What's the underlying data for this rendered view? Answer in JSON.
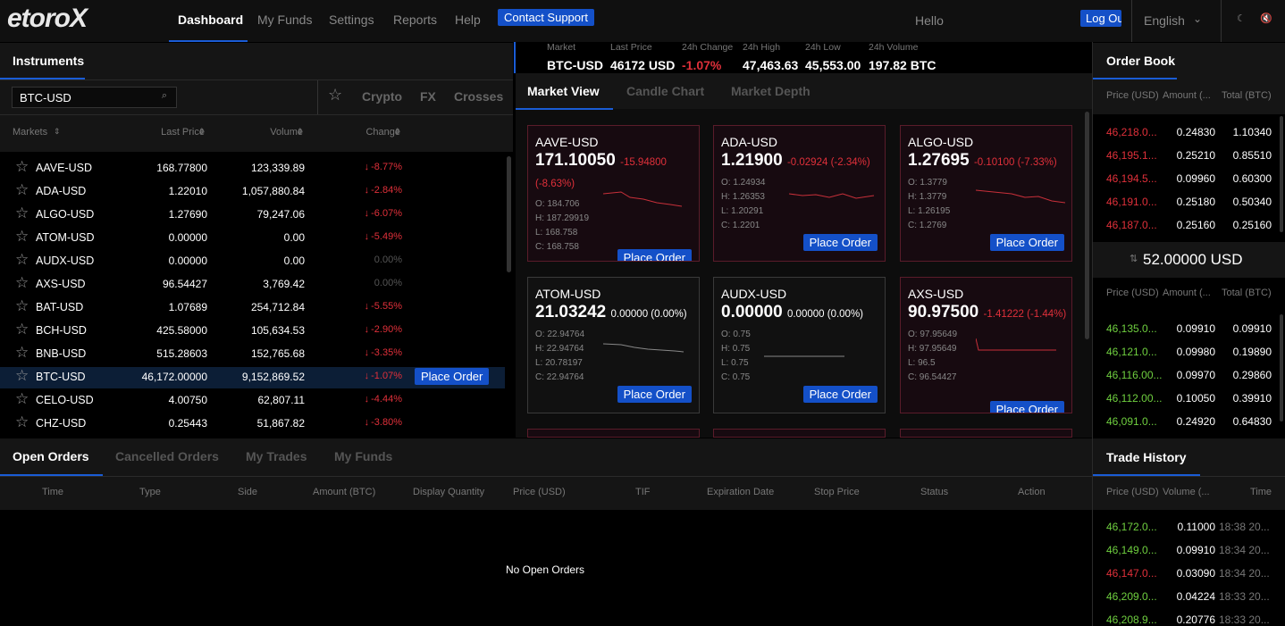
{
  "nav": {
    "logo": "etoroX",
    "items": [
      "Dashboard",
      "My Funds",
      "Settings",
      "Reports",
      "Help"
    ],
    "contact": "Contact Support",
    "greeting": "Hello",
    "logout": "Log Ou",
    "language": "English"
  },
  "instruments": {
    "title": "Instruments",
    "search": "BTC-USD",
    "tabs": [
      "Crypto",
      "FX",
      "Crosses"
    ],
    "columns": [
      "Markets",
      "Last Price",
      "Volume",
      "Change"
    ],
    "rows": [
      [
        "AAVE-USD",
        "168.77800",
        "123,339.89",
        "-8.77%"
      ],
      [
        "ADA-USD",
        "1.22010",
        "1,057,880.84",
        "-2.84%"
      ],
      [
        "ALGO-USD",
        "1.27690",
        "79,247.06",
        "-6.07%"
      ],
      [
        "ATOM-USD",
        "0.00000",
        "0.00",
        "-5.49%"
      ],
      [
        "AUDX-USD",
        "0.00000",
        "0.00",
        "0.00%"
      ],
      [
        "AXS-USD",
        "96.54427",
        "3,769.42",
        "0.00%"
      ],
      [
        "BAT-USD",
        "1.07689",
        "254,712.84",
        "-5.55%"
      ],
      [
        "BCH-USD",
        "425.58000",
        "105,634.53",
        "-2.90%"
      ],
      [
        "BNB-USD",
        "515.28603",
        "152,765.68",
        "-3.35%"
      ],
      [
        "BTC-USD",
        "46,172.00000",
        "9,152,869.52",
        "-1.07%"
      ],
      [
        "CELO-USD",
        "4.00750",
        "62,807.11",
        "-4.44%"
      ],
      [
        "CHZ-USD",
        "0.25443",
        "51,867.82",
        "-3.80%"
      ]
    ],
    "selected_row": 9,
    "place_order": "Place Order"
  },
  "ticker": {
    "labels": [
      "Market",
      "Last Price",
      "24h Change",
      "24h High",
      "24h Low",
      "24h Volume"
    ],
    "values": [
      "BTC-USD",
      "46172 USD",
      "-1.07%",
      "47,463.63",
      "45,553.00",
      "197.82 BTC"
    ]
  },
  "market": {
    "tabs": [
      "Market View",
      "Candle Chart",
      "Market Depth"
    ],
    "button": "Place Order",
    "cards": [
      {
        "name": "AAVE-USD",
        "price": "171.10050",
        "change": "-15.94800 (-8.63%)",
        "open": "O: 184.706",
        "high": "H: 187.29919",
        "low": "L: 168.758",
        "close": "C: 168.758"
      },
      {
        "name": "ADA-USD",
        "price": "1.21900",
        "change": "-0.02924 (-2.34%)",
        "open": "O: 1.24934",
        "high": "H: 1.26353",
        "low": "L: 1.20291",
        "close": "C: 1.2201"
      },
      {
        "name": "ALGO-USD",
        "price": "1.27695",
        "change": "-0.10100 (-7.33%)",
        "open": "O: 1.3779",
        "high": "H: 1.3779",
        "low": "L: 1.26195",
        "close": "C: 1.2769"
      },
      {
        "name": "ATOM-USD",
        "price": "21.03242",
        "change": "0.00000 (0.00%)",
        "open": "O: 22.94764",
        "high": "H: 22.94764",
        "low": "L: 20.78197",
        "close": "C: 22.94764"
      },
      {
        "name": "AUDX-USD",
        "price": "0.00000",
        "change": "0.00000 (0.00%)",
        "open": "O: 0.75",
        "high": "H: 0.75",
        "low": "L: 0.75",
        "close": "C: 0.75"
      },
      {
        "name": "AXS-USD",
        "price": "90.97500",
        "change": "-1.41222 (-1.44%)",
        "open": "O: 97.95649",
        "high": "H: 97.95649",
        "low": "L: 96.5",
        "close": "C: 96.54427"
      }
    ]
  },
  "order_book": {
    "title": "Order Book",
    "columns": [
      "Price (USD)",
      "Amount (...",
      "Total (BTC)"
    ],
    "asks": [
      [
        "46,218.0...",
        "0.24830",
        "1.10340"
      ],
      [
        "46,195.1...",
        "0.25210",
        "0.85510"
      ],
      [
        "46,194.5...",
        "0.09960",
        "0.60300"
      ],
      [
        "46,191.0...",
        "0.25180",
        "0.50340"
      ],
      [
        "46,187.0...",
        "0.25160",
        "0.25160"
      ]
    ],
    "mid": "52.00000 USD",
    "bids": [
      [
        "46,135.0...",
        "0.09910",
        "0.09910"
      ],
      [
        "46,121.0...",
        "0.09980",
        "0.19890"
      ],
      [
        "46,116.00...",
        "0.09970",
        "0.29860"
      ],
      [
        "46,112.00...",
        "0.10050",
        "0.39910"
      ],
      [
        "46,091.0...",
        "0.24920",
        "0.64830"
      ]
    ]
  },
  "orders": {
    "tabs": [
      "Open Orders",
      "Cancelled Orders",
      "My Trades",
      "My Funds"
    ],
    "columns": [
      "Time",
      "Type",
      "Side",
      "Amount (BTC)",
      "Display Quantity",
      "Price (USD)",
      "TIF",
      "Expiration Date",
      "Stop Price",
      "Status",
      "Action"
    ],
    "empty": "No Open Orders"
  },
  "trade_history": {
    "title": "Trade History",
    "columns": [
      "Price (USD)",
      "Volume (...",
      "Time"
    ],
    "rows": [
      [
        "46,172.0...",
        "0.11000",
        "18:38 20..."
      ],
      [
        "46,149.0...",
        "0.09910",
        "18:34 20..."
      ],
      [
        "46,147.0...",
        "0.03090",
        "18:34 20..."
      ],
      [
        "46,209.0...",
        "0.04224",
        "18:33 20..."
      ],
      [
        "46,208.9...",
        "0.20776",
        "18:33 20..."
      ]
    ],
    "colors": [
      "#6fcf3f",
      "#6fcf3f",
      "#e0303a",
      "#6fcf3f",
      "#6fcf3f"
    ]
  }
}
